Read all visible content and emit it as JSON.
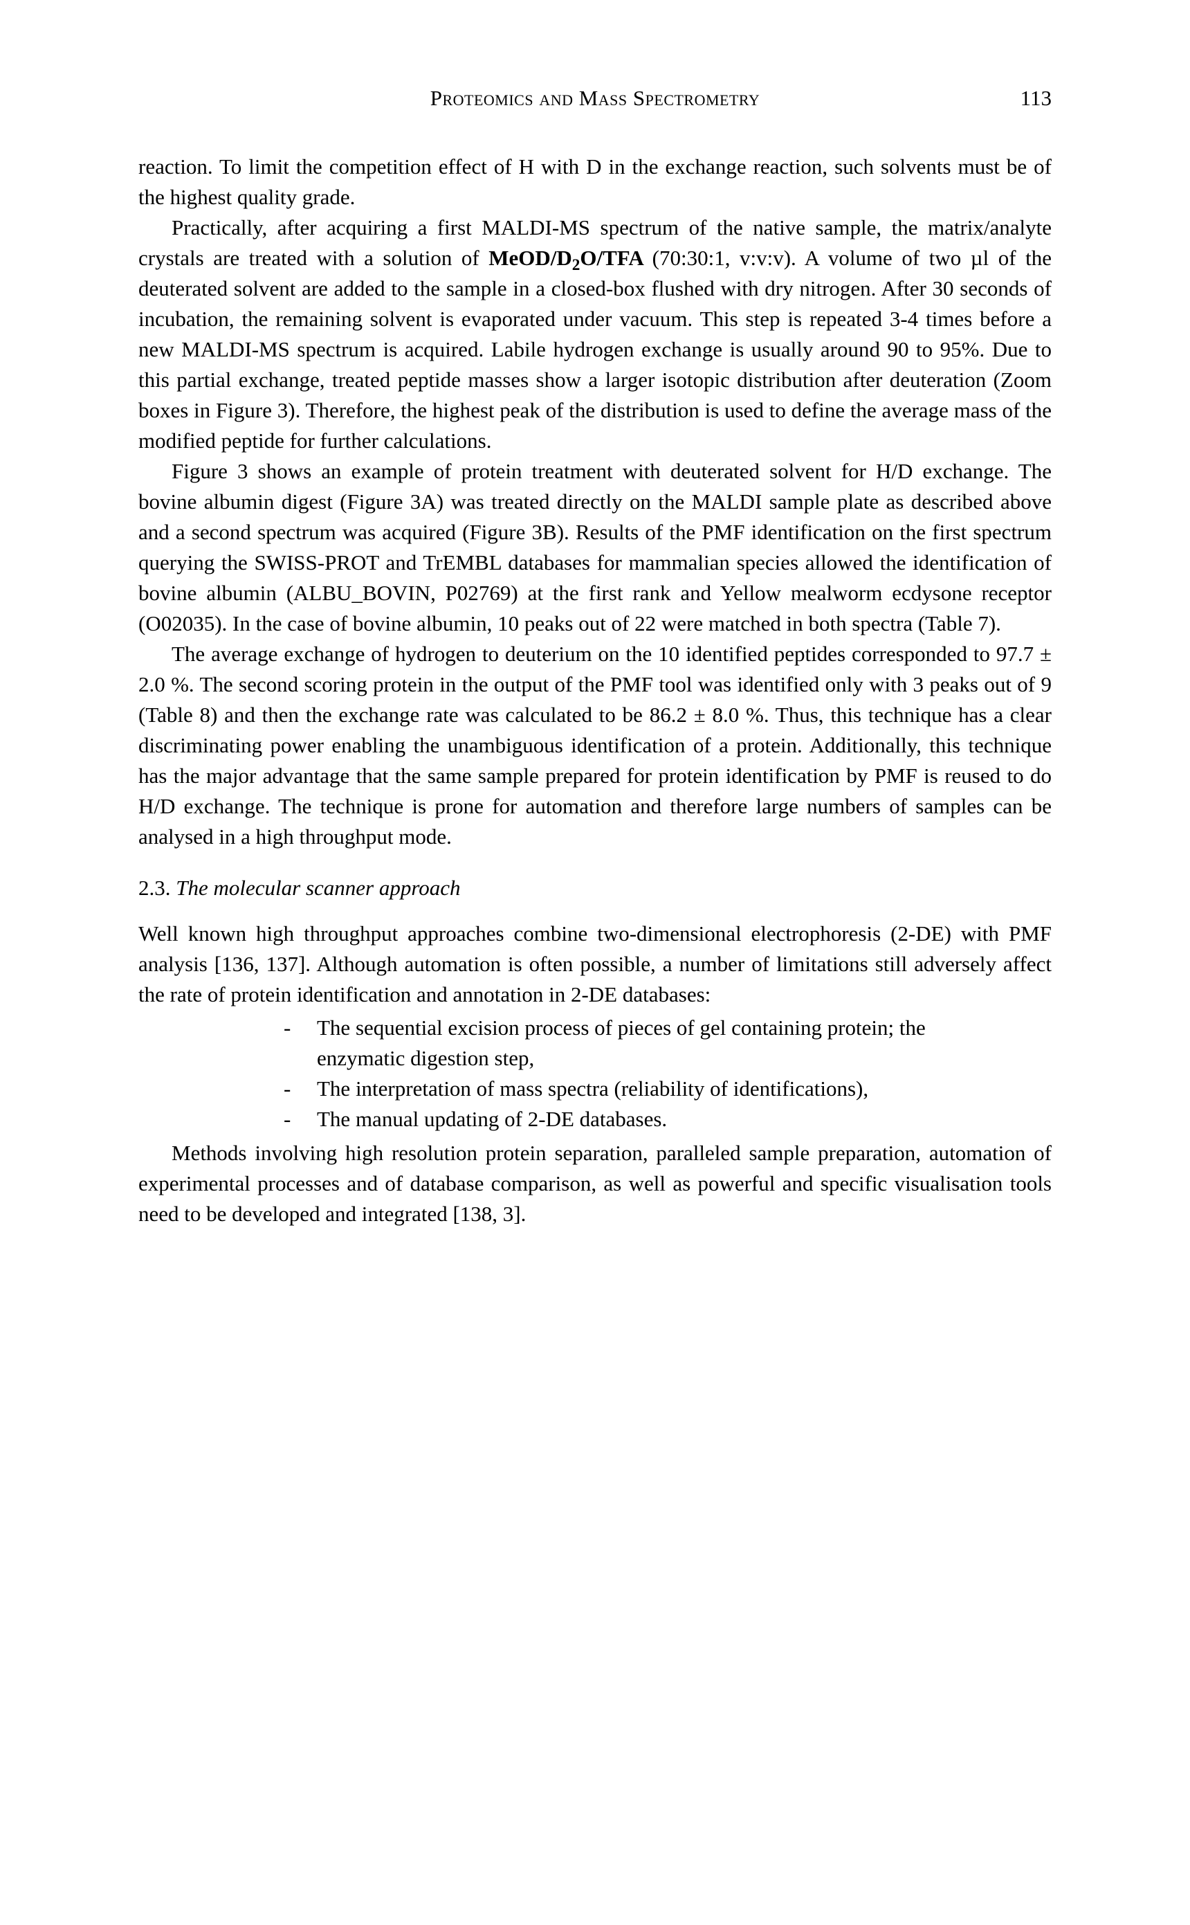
{
  "header": {
    "running_title": "Proteomics and Mass Spectrometry",
    "page_number": "113"
  },
  "para1": "reaction. To limit the competition effect of H with D in the exchange reaction, such solvents must be of the highest quality grade.",
  "para2_a": "Practically, after acquiring a first MALDI-MS spectrum of the native sample, the matrix/analyte crystals are treated with a solution of ",
  "para2_bold": "MeOD/D",
  "para2_sub": "2",
  "para2_bold2": "O/TFA ",
  "para2_b": "(70:30:1, v:v:v). A volume of two µl of the deuterated solvent are added to the sample in a closed-box flushed with dry nitrogen. After 30 seconds of incubation, the remaining solvent is evaporated under vacuum. This step is repeated 3-4 times before a new MALDI-MS spectrum is acquired. Labile hydrogen exchange is usually around 90 to 95%. Due to this partial exchange, treated peptide masses show a larger isotopic distribution after deuteration (Zoom boxes in Figure 3). Therefore, the highest peak of the distribution is used to define the average mass of the modified peptide for further calculations.",
  "para3": "Figure 3 shows an example of protein treatment with deuterated solvent for H/D exchange. The bovine albumin digest (Figure 3A) was treated directly on the MALDI sample plate as described above and a second spectrum was acquired (Figure 3B). Results of the PMF identification on the first spectrum querying the SWISS-PROT and TrEMBL databases for mammalian species allowed the identification of bovine albumin (ALBU_BOVIN, P02769) at the first rank and Yellow mealworm ecdysone receptor (O02035). In the case of bovine albumin, 10 peaks out of 22 were matched in both spectra (Table 7).",
  "para4": "The average exchange of hydrogen to deuterium on the 10 identified peptides corresponded to 97.7 ± 2.0 %. The second scoring protein in the output of the PMF tool was identified only with 3 peaks out of 9 (Table 8) and then the exchange rate was calculated to be 86.2 ± 8.0 %. Thus, this technique has a clear discriminating power enabling the unambiguous identification of a protein. Additionally, this technique has the major advantage that the same sample prepared for protein identification by PMF is reused to do H/D exchange. The technique is prone for automation and therefore large numbers of samples can be analysed in a high throughput mode.",
  "section": {
    "num": "2.3.",
    "title": "The molecular scanner approach"
  },
  "para5": "Well known high throughput approaches combine two-dimensional electrophoresis (2-DE) with PMF analysis [136, 137]. Although automation is often possible, a number of limitations still adversely affect the rate of protein identification and annotation in 2-DE databases:",
  "list": {
    "item1_line1": "The sequential excision process of pieces of gel containing protein; the",
    "item1_line2": "enzymatic digestion step,",
    "item2": "The interpretation of mass spectra (reliability of identifications),",
    "item3": "The manual updating of 2-DE databases."
  },
  "para6": "Methods involving high resolution protein separation, paralleled sample preparation, automation of experimental processes and of database comparison, as well as powerful and specific visualisation tools need to be developed and integrated [138, 3].",
  "bullet": "-"
}
